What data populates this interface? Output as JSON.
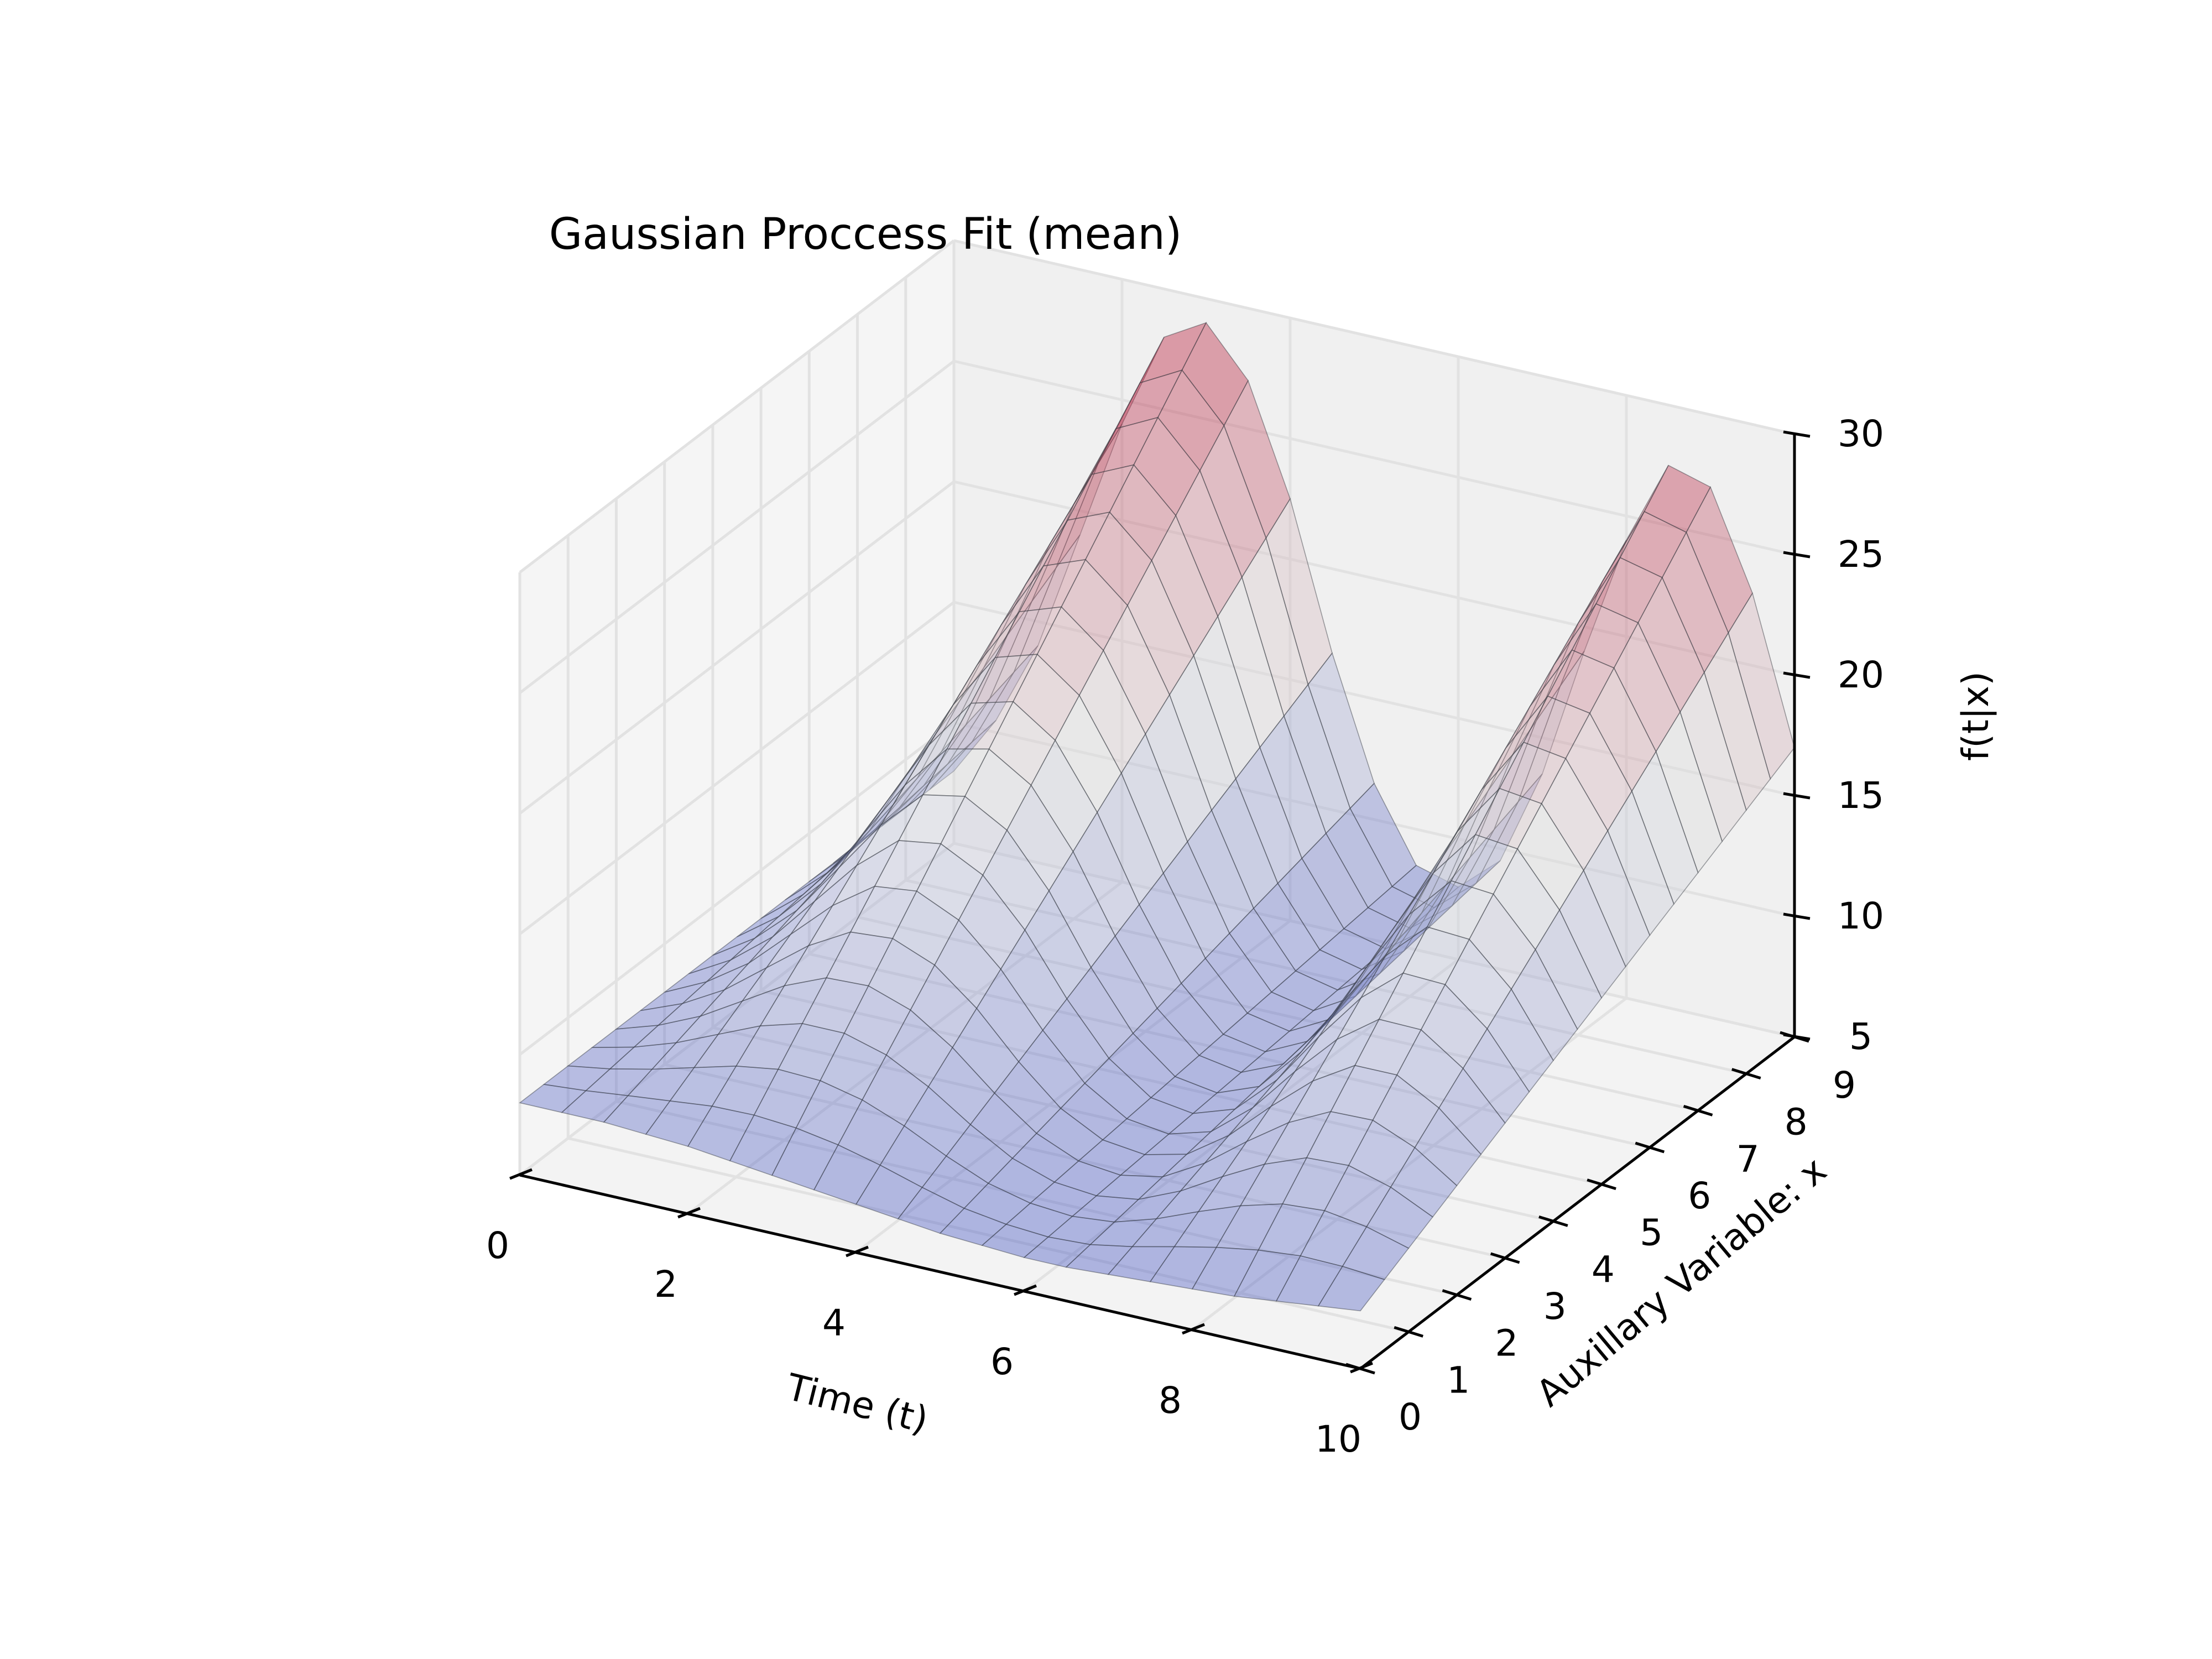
{
  "chart_data": {
    "type": "surface",
    "title": "Gaussian Proccess Fit (mean)",
    "xlabel": "Time (t)",
    "ylabel": "Auxillary Variable: x",
    "zlabel": "f(t|x)",
    "xlim": [
      0,
      10
    ],
    "ylim": [
      0,
      9
    ],
    "zlim": [
      5,
      30
    ],
    "x_ticks": [
      "0",
      "2",
      "4",
      "6",
      "8",
      "10"
    ],
    "y_ticks": [
      "0",
      "1",
      "2",
      "3",
      "4",
      "5",
      "6",
      "7",
      "8",
      "9"
    ],
    "z_ticks": [
      "5",
      "10",
      "15",
      "20",
      "25",
      "30"
    ],
    "grid": true,
    "colormap": "coolwarm",
    "alpha": 0.4,
    "surface_x": [
      0,
      0.5,
      1,
      1.5,
      2,
      2.5,
      3,
      3.5,
      4,
      4.5,
      5,
      5.5,
      6,
      6.5,
      7,
      7.5,
      8,
      8.5,
      9,
      9.5,
      10
    ],
    "surface_y": [
      0,
      0.5,
      1,
      1.5,
      2,
      2.5,
      3,
      3.5,
      4,
      4.5,
      5,
      5.5,
      6,
      6.5,
      7,
      7.5,
      8,
      8.5,
      9
    ],
    "surface_z_at_y0": [
      8,
      8,
      8,
      7.9,
      7.8,
      7.6,
      7.4,
      7.2,
      7.0,
      6.8,
      6.6,
      6.5,
      6.4,
      6.4,
      6.5,
      6.6,
      6.7,
      6.8,
      7.0,
      7.2,
      7.4
    ],
    "surface_z_at_y9": [
      8,
      10.5,
      14,
      19,
      24,
      28,
      29,
      27,
      22.5,
      16.5,
      11.5,
      8.5,
      8,
      9.5,
      13.5,
      19,
      24,
      27.5,
      27,
      23,
      17
    ]
  }
}
